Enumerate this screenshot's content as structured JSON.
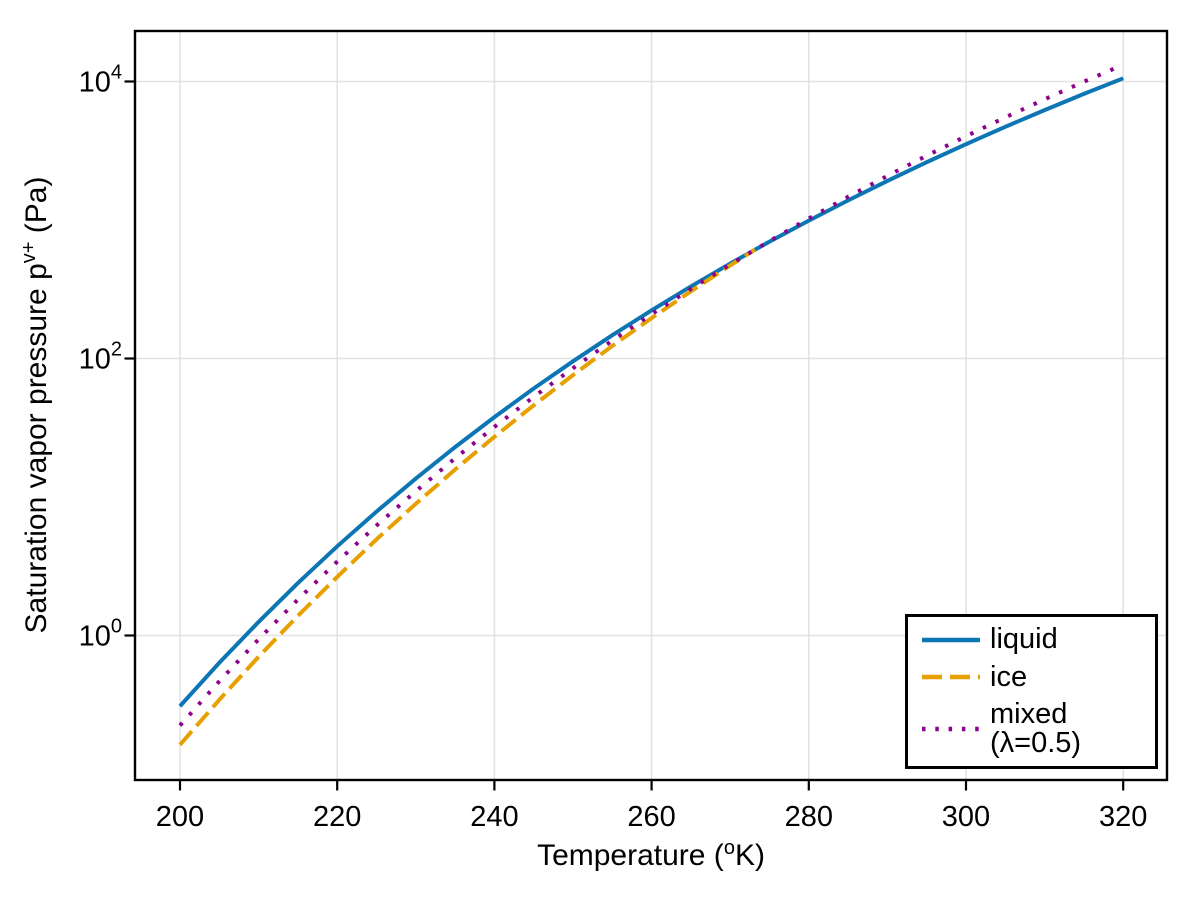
{
  "figure": {
    "background": "#ffffff"
  },
  "style": {
    "grid_color": "#e2e2e2",
    "spine_color": "#000000",
    "text_color": "#000000",
    "liquid_color": "#0c76b4",
    "ice_color": "#e6a000",
    "mixed_color": "#8e008e"
  },
  "axis": {
    "xlabel_parts": [
      {
        "text": "Temperature ("
      },
      {
        "text": "o",
        "sup": true
      },
      {
        "text": "K)"
      }
    ],
    "ylabel_parts": [
      {
        "text": "Saturation vapor pressure p"
      },
      {
        "text": "v+",
        "sup": true
      },
      {
        "text": " (Pa)"
      }
    ]
  },
  "legend": {
    "position": "lower right",
    "entries": [
      {
        "label": "liquid",
        "style": "solid",
        "color": "#0c76b4"
      },
      {
        "label": "ice",
        "style": "dashed",
        "color": "#e6a000"
      },
      {
        "label": "mixed (λ=0.5)",
        "style": "dotted",
        "color": "#8e008e"
      }
    ]
  },
  "chart_data": {
    "type": "line",
    "title": "",
    "xlabel": "Temperature (oK)",
    "ylabel": "Saturation vapor pressure pv+ (Pa)",
    "y_scale": "log",
    "xlim": [
      194.3,
      325.7
    ],
    "ylim": [
      0.09,
      23000
    ],
    "grid": true,
    "x_ticks": [
      200,
      220,
      240,
      260,
      280,
      300,
      320
    ],
    "x_tick_labels": [
      "200",
      "220",
      "240",
      "260",
      "280",
      "300",
      "320"
    ],
    "y_tick_exponents": [
      0,
      2,
      4
    ],
    "y_tick_labels": [
      {
        "base": "10",
        "exp": "0"
      },
      {
        "base": "10",
        "exp": "2"
      },
      {
        "base": "10",
        "exp": "4"
      }
    ],
    "series": [
      {
        "name": "liquid",
        "style": "solid",
        "color": "#0c76b4",
        "x": [
          200,
          205,
          210,
          215,
          220,
          225,
          230,
          235,
          240,
          245,
          250,
          255,
          260,
          265,
          270,
          275,
          280,
          285,
          290,
          295,
          300,
          305,
          310,
          315,
          320
        ],
        "y": [
          0.309,
          0.635,
          1.254,
          2.389,
          4.403,
          7.85,
          13.58,
          22.94,
          37.74,
          60.72,
          95.53,
          147.3,
          222.9,
          331.5,
          484.7,
          697.9,
          990.5,
          1386,
          1915,
          2614,
          3528,
          4709,
          6219,
          8134,
          10548
        ]
      },
      {
        "name": "ice",
        "style": "dashed",
        "color": "#e6a000",
        "x": [
          200,
          205,
          210,
          215,
          220,
          225,
          230,
          235,
          240,
          245,
          250,
          255,
          260,
          265,
          270,
          273.15
        ],
        "y": [
          0.1625,
          0.3433,
          0.7031,
          1.387,
          2.651,
          4.94,
          8.938,
          15.8,
          27.22,
          45.94,
          75.93,
          123.4,
          195.6,
          305.7,
          469.9,
          611.2
        ]
      },
      {
        "name": "mixed (λ=0.5)",
        "style": "dotted",
        "color": "#8e008e",
        "x": [
          200,
          205,
          210,
          215,
          220,
          225,
          230,
          235,
          240,
          245,
          250,
          255,
          260,
          265,
          270,
          275,
          280,
          285,
          290,
          295,
          300,
          305,
          310,
          315,
          320
        ],
        "y": [
          0.2241,
          0.4669,
          0.939,
          1.82,
          3.416,
          6.227,
          11.02,
          19.04,
          32.05,
          52.82,
          85.16,
          134.8,
          208.8,
          318.3,
          477.2,
          704.5,
          1025,
          1470,
          2082,
          2912,
          4025,
          5502,
          7441,
          9962,
          13220
        ]
      }
    ]
  }
}
